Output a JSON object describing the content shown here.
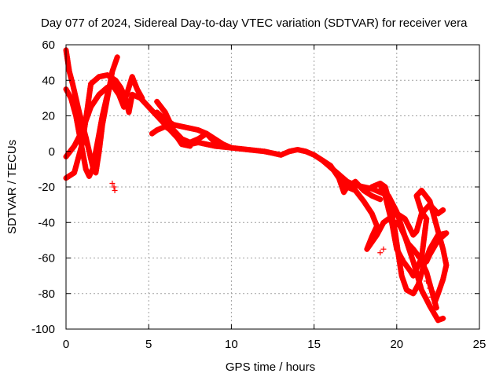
{
  "chart_data": {
    "type": "scatter",
    "title": "Day 077 of 2024, Sidereal Day-to-day VTEC variation (SDTVAR) for receiver vera",
    "xlabel": "GPS time / hours",
    "ylabel": "SDTVAR / TECUs",
    "xlim": [
      0,
      25
    ],
    "ylim": [
      -100,
      60
    ],
    "xticks": [
      0,
      5,
      10,
      15,
      20,
      25
    ],
    "yticks": [
      -100,
      -80,
      -60,
      -40,
      -20,
      0,
      20,
      40,
      60
    ],
    "xtick_labels": [
      "0",
      "5",
      "10",
      "15",
      "20",
      "25"
    ],
    "ytick_labels": [
      "-100",
      "-80",
      "-60",
      "-40",
      "-20",
      "0",
      "20",
      "40",
      "60"
    ],
    "grid": true,
    "marker": "+",
    "color": "#ff0000",
    "series": [
      {
        "name": "main-track",
        "points": [
          [
            0,
            -3
          ],
          [
            0.5,
            3
          ],
          [
            1,
            12
          ],
          [
            1.5,
            25
          ],
          [
            2,
            32
          ],
          [
            2.5,
            36
          ],
          [
            3,
            38
          ],
          [
            3.3,
            36
          ],
          [
            3.6,
            30
          ],
          [
            3.8,
            22
          ],
          [
            4,
            32
          ],
          [
            4.5,
            30
          ],
          [
            5,
            25
          ],
          [
            5.5,
            20
          ],
          [
            6,
            15
          ],
          [
            6.5,
            10
          ],
          [
            7,
            5
          ],
          [
            7.5,
            4
          ],
          [
            8,
            5
          ],
          [
            8.5,
            4
          ],
          [
            9,
            3
          ],
          [
            10,
            2
          ],
          [
            11,
            1
          ],
          [
            12,
            0
          ],
          [
            12.5,
            -1
          ],
          [
            13,
            -2
          ],
          [
            13.5,
            0
          ],
          [
            14,
            1
          ],
          [
            14.5,
            0
          ],
          [
            15,
            -2
          ],
          [
            15.5,
            -5
          ],
          [
            16,
            -9
          ],
          [
            16.5,
            -13
          ],
          [
            17,
            -17
          ],
          [
            17.5,
            -19
          ],
          [
            18,
            -20
          ],
          [
            18.5,
            -21
          ],
          [
            19,
            -23
          ],
          [
            19.5,
            -25
          ],
          [
            20,
            -34
          ],
          [
            20.5,
            -48
          ],
          [
            21,
            -62
          ],
          [
            21.5,
            -78
          ],
          [
            22,
            -87
          ],
          [
            22.5,
            -95
          ],
          [
            22.8,
            -94
          ]
        ]
      },
      {
        "name": "track-a",
        "points": [
          [
            0,
            57
          ],
          [
            0.2,
            45
          ],
          [
            0.4,
            38
          ],
          [
            0.6,
            30
          ],
          [
            0.8,
            22
          ],
          [
            1,
            15
          ],
          [
            1.2,
            8
          ],
          [
            1.4,
            0
          ],
          [
            1.6,
            -8
          ],
          [
            1.8,
            -12
          ],
          [
            2,
            0
          ],
          [
            2.2,
            15
          ],
          [
            2.5,
            30
          ],
          [
            2.8,
            45
          ],
          [
            3.1,
            53
          ]
        ]
      },
      {
        "name": "track-b",
        "points": [
          [
            0,
            35
          ],
          [
            0.3,
            30
          ],
          [
            0.6,
            20
          ],
          [
            0.9,
            5
          ],
          [
            1.2,
            -10
          ],
          [
            1.4,
            -14
          ],
          [
            1.6,
            -10
          ],
          [
            1.9,
            5
          ],
          [
            2.2,
            20
          ],
          [
            2.5,
            32
          ],
          [
            2.7,
            38
          ],
          [
            2.9,
            36
          ],
          [
            3.2,
            32
          ],
          [
            3.5,
            25
          ],
          [
            3.8,
            28
          ]
        ]
      },
      {
        "name": "track-c",
        "points": [
          [
            0,
            -15
          ],
          [
            0.5,
            -12
          ],
          [
            1,
            5
          ],
          [
            1.5,
            38
          ],
          [
            2,
            42
          ],
          [
            2.5,
            43
          ],
          [
            3,
            40
          ],
          [
            3.3,
            36
          ],
          [
            3.6,
            30
          ],
          [
            4,
            42
          ],
          [
            4.3,
            35
          ],
          [
            4.6,
            30
          ]
        ]
      },
      {
        "name": "track-d",
        "points": [
          [
            5.5,
            22
          ],
          [
            6,
            18
          ],
          [
            6.5,
            15
          ],
          [
            7,
            14
          ],
          [
            7.5,
            13
          ],
          [
            8,
            12
          ],
          [
            8.5,
            10
          ],
          [
            9,
            7
          ],
          [
            9.5,
            4
          ],
          [
            10,
            2
          ]
        ]
      },
      {
        "name": "track-e",
        "points": [
          [
            5.5,
            28
          ],
          [
            6,
            22
          ],
          [
            6.5,
            12
          ],
          [
            7,
            7
          ],
          [
            7.5,
            5
          ],
          [
            8,
            7
          ],
          [
            8.5,
            10
          ],
          [
            9,
            5
          ],
          [
            10,
            2
          ]
        ]
      },
      {
        "name": "track-f",
        "points": [
          [
            5.2,
            10
          ],
          [
            5.5,
            12
          ],
          [
            6,
            14
          ],
          [
            6.5,
            11
          ],
          [
            7,
            4
          ],
          [
            7.5,
            3
          ]
        ]
      },
      {
        "name": "track-g",
        "points": [
          [
            15.5,
            -5
          ],
          [
            16,
            -8
          ],
          [
            16.5,
            -15
          ],
          [
            16.8,
            -23
          ],
          [
            17,
            -20
          ],
          [
            17.5,
            -17
          ],
          [
            18,
            -22
          ],
          [
            18.5,
            -25
          ],
          [
            19,
            -27
          ]
        ]
      },
      {
        "name": "track-h",
        "points": [
          [
            16,
            -9
          ],
          [
            16.5,
            -13
          ],
          [
            17,
            -20
          ],
          [
            17.5,
            -22
          ],
          [
            18,
            -28
          ],
          [
            18.5,
            -35
          ],
          [
            18.8,
            -42
          ],
          [
            18.5,
            -48
          ],
          [
            18.2,
            -55
          ],
          [
            18.8,
            -47
          ],
          [
            19.2,
            -40
          ],
          [
            19.5,
            -38
          ],
          [
            20,
            -35
          ],
          [
            20.5,
            -38
          ],
          [
            21,
            -47
          ],
          [
            21.2,
            -45
          ],
          [
            21.5,
            -35
          ],
          [
            22,
            -30
          ],
          [
            22.5,
            -35
          ],
          [
            22.8,
            -33
          ]
        ]
      },
      {
        "name": "track-i",
        "points": [
          [
            18.5,
            -20
          ],
          [
            19,
            -18
          ],
          [
            19.3,
            -20
          ],
          [
            19.6,
            -30
          ],
          [
            19.9,
            -45
          ],
          [
            20.1,
            -58
          ],
          [
            20.3,
            -70
          ],
          [
            20.6,
            -78
          ],
          [
            21,
            -80
          ],
          [
            21.3,
            -75
          ],
          [
            21.6,
            -65
          ],
          [
            22,
            -55
          ],
          [
            22.5,
            -47
          ],
          [
            23,
            -46
          ],
          [
            22.5,
            -50
          ],
          [
            22,
            -58
          ],
          [
            21.8,
            -62
          ]
        ]
      },
      {
        "name": "track-j",
        "points": [
          [
            19,
            -19
          ],
          [
            19.3,
            -25
          ],
          [
            19.7,
            -40
          ],
          [
            20,
            -55
          ],
          [
            20.4,
            -62
          ],
          [
            20.8,
            -67
          ],
          [
            21,
            -70
          ],
          [
            21.5,
            -60
          ],
          [
            21.8,
            -38
          ],
          [
            21.5,
            -34
          ],
          [
            21.2,
            -25
          ],
          [
            21.5,
            -22
          ],
          [
            22,
            -28
          ],
          [
            22.5,
            -45
          ],
          [
            22.8,
            -55
          ],
          [
            23,
            -64
          ],
          [
            22.8,
            -72
          ],
          [
            22.5,
            -80
          ],
          [
            22.3,
            -85
          ]
        ]
      },
      {
        "name": "track-k",
        "points": [
          [
            20,
            -40
          ],
          [
            20.2,
            -42
          ],
          [
            20.4,
            -46
          ],
          [
            20.7,
            -52
          ],
          [
            21,
            -55
          ],
          [
            21.4,
            -60
          ],
          [
            21.8,
            -68
          ],
          [
            22.1,
            -78
          ],
          [
            22.4,
            -88
          ]
        ]
      }
    ],
    "isolated_points": [
      [
        2.8,
        -18
      ],
      [
        2.9,
        -20
      ],
      [
        2.95,
        -22
      ],
      [
        19,
        -57
      ],
      [
        19.2,
        -55
      ],
      [
        21.8,
        -73
      ],
      [
        22,
        -77
      ],
      [
        22.1,
        -82
      ],
      [
        22.3,
        -80
      ]
    ]
  }
}
